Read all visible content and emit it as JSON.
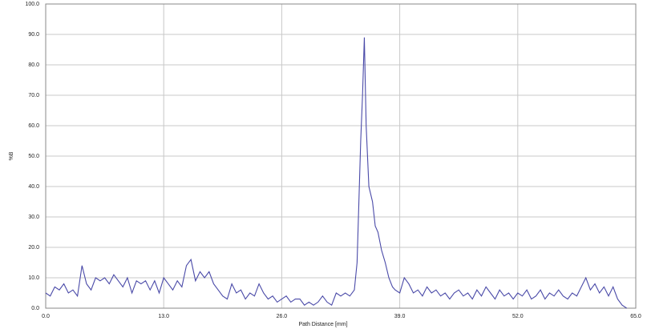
{
  "chart_data": {
    "type": "line",
    "xlabel": "Path Distance [mm]",
    "ylabel": "%B",
    "x": [
      0,
      0.5,
      1,
      1.5,
      2,
      2.5,
      3,
      3.5,
      4,
      4.5,
      5,
      5.5,
      6,
      6.5,
      7,
      7.5,
      8,
      8.5,
      9,
      9.5,
      10,
      10.5,
      11,
      11.5,
      12,
      12.5,
      13,
      13.5,
      14,
      14.5,
      15,
      15.5,
      16,
      16.5,
      17,
      17.5,
      18,
      18.5,
      19,
      19.5,
      20,
      20.5,
      21,
      21.5,
      22,
      22.5,
      23,
      23.5,
      24,
      24.5,
      25,
      25.5,
      26,
      26.5,
      27,
      27.5,
      28,
      28.5,
      29,
      29.5,
      30,
      30.5,
      31,
      31.5,
      32,
      32.5,
      33,
      33.5,
      34,
      34.3,
      34.7,
      34.9,
      35.1,
      35.3,
      35.6,
      36,
      36.3,
      36.6,
      37,
      37.4,
      37.8,
      38.2,
      38.5,
      39,
      39.5,
      40,
      40.5,
      41,
      41.5,
      42,
      42.5,
      43,
      43.5,
      44,
      44.5,
      45,
      45.5,
      46,
      46.5,
      47,
      47.5,
      48,
      48.5,
      49,
      49.5,
      50,
      50.5,
      51,
      51.5,
      52,
      52.5,
      53,
      53.5,
      54,
      54.5,
      55,
      55.5,
      56,
      56.5,
      57,
      57.5,
      58,
      58.5,
      59,
      59.5,
      60,
      60.5,
      61,
      61.5,
      62,
      62.5,
      63,
      63.5,
      64
    ],
    "series": [
      {
        "name": "%B",
        "color": "#4a4aa8",
        "values": [
          5,
          4,
          7,
          6,
          8,
          5,
          6,
          4,
          14,
          8,
          6,
          10,
          9,
          10,
          8,
          11,
          9,
          7,
          10,
          5,
          9,
          8,
          9,
          6,
          9,
          5,
          10,
          8,
          6,
          9,
          7,
          14,
          16,
          9,
          12,
          10,
          12,
          8,
          6,
          4,
          3,
          8,
          5,
          6,
          3,
          5,
          4,
          8,
          5,
          3,
          4,
          2,
          3,
          4,
          2,
          3,
          3,
          1,
          2,
          1,
          2,
          4,
          2,
          1,
          5,
          4,
          5,
          4,
          6,
          15,
          55,
          70,
          89,
          60,
          40,
          35,
          27,
          25,
          19,
          15,
          10,
          7,
          6,
          5,
          10,
          8,
          5,
          6,
          4,
          7,
          5,
          6,
          4,
          5,
          3,
          5,
          6,
          4,
          5,
          3,
          6,
          4,
          7,
          5,
          3,
          6,
          4,
          5,
          3,
          5,
          4,
          6,
          3,
          4,
          6,
          3,
          5,
          4,
          6,
          4,
          3,
          5,
          4,
          7,
          10,
          6,
          8,
          5,
          7,
          4,
          7,
          3,
          1,
          0
        ]
      }
    ],
    "xlim": [
      0,
      65
    ],
    "ylim": [
      0,
      100
    ],
    "xticks": [
      {
        "value": 0,
        "label": "0.0"
      },
      {
        "value": 13,
        "label": "13.0"
      },
      {
        "value": 26,
        "label": "26.0"
      },
      {
        "value": 39,
        "label": "39.0"
      },
      {
        "value": 52,
        "label": "52.0"
      },
      {
        "value": 65,
        "label": "65.0"
      }
    ],
    "yticks": [
      {
        "value": 0,
        "label": "0.0"
      },
      {
        "value": 10,
        "label": "10.0"
      },
      {
        "value": 20,
        "label": "20.0"
      },
      {
        "value": 30,
        "label": "30.0"
      },
      {
        "value": 40,
        "label": "40.0"
      },
      {
        "value": 50,
        "label": "50.0"
      },
      {
        "value": 60,
        "label": "60.0"
      },
      {
        "value": 70,
        "label": "70.0"
      },
      {
        "value": 80,
        "label": "80.0"
      },
      {
        "value": 90,
        "label": "90.0"
      },
      {
        "value": 100,
        "label": "100.0"
      }
    ],
    "grid": true
  }
}
